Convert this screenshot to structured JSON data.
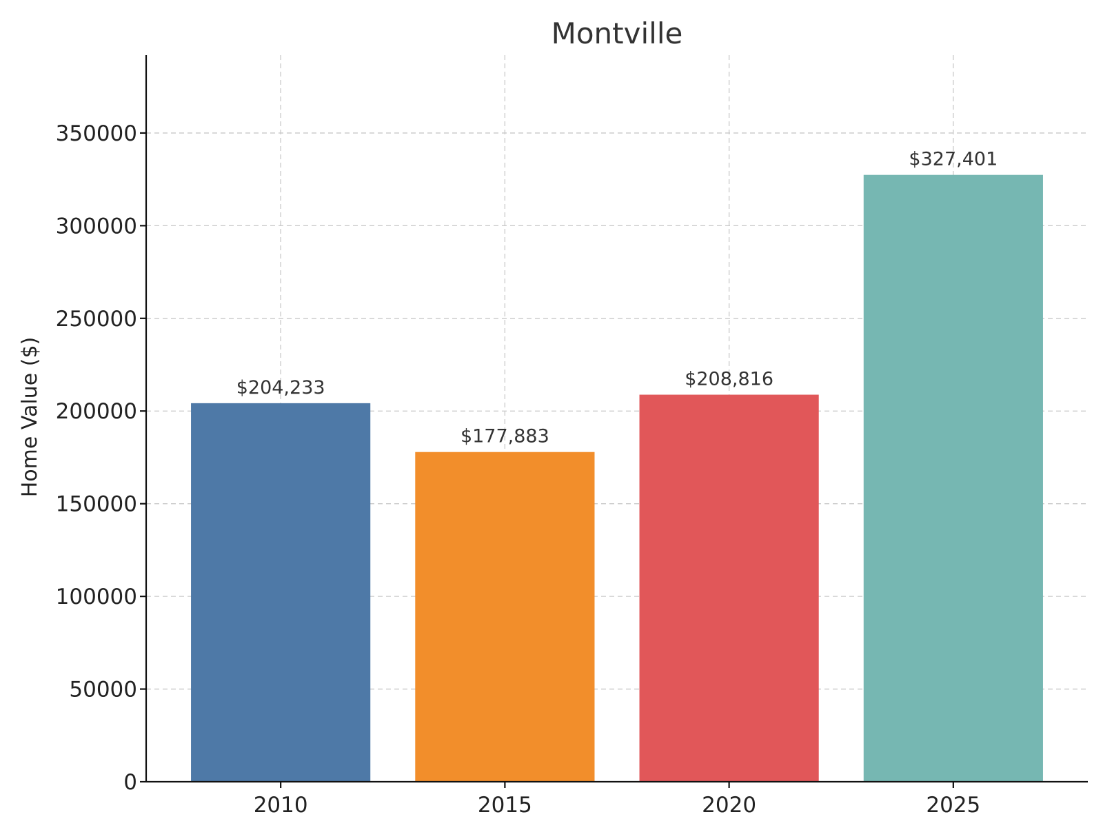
{
  "chart_data": {
    "type": "bar",
    "title": "Montville",
    "xlabel": "",
    "ylabel": "Home Value ($)",
    "categories": [
      "2010",
      "2015",
      "2020",
      "2025"
    ],
    "values": [
      204233,
      177883,
      208816,
      327401
    ],
    "data_labels": [
      "$204,233",
      "$177,883",
      "$208,816",
      "$327,401"
    ],
    "colors": [
      "#4e79a7",
      "#f28e2b",
      "#e15759",
      "#76b7b2"
    ],
    "ylim": [
      0,
      392000
    ],
    "yticks": [
      0,
      50000,
      100000,
      150000,
      200000,
      250000,
      300000,
      350000
    ],
    "ytick_labels": [
      "0",
      "50000",
      "100000",
      "150000",
      "200000",
      "250000",
      "300000",
      "350000"
    ],
    "grid": true,
    "legend": "none"
  }
}
